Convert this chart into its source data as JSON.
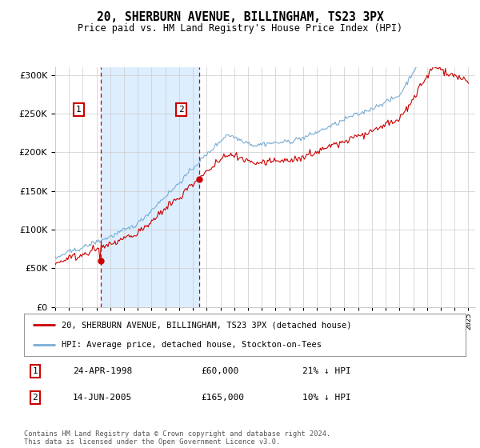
{
  "title1": "20, SHERBURN AVENUE, BILLINGHAM, TS23 3PX",
  "title2": "Price paid vs. HM Land Registry's House Price Index (HPI)",
  "ytick_values": [
    0,
    50000,
    100000,
    150000,
    200000,
    250000,
    300000
  ],
  "ylim": [
    0,
    310000
  ],
  "xlim_start": 1995.0,
  "xlim_end": 2025.5,
  "sale1_x": 1998.31,
  "sale1_y": 60000,
  "sale2_x": 2005.45,
  "sale2_y": 165000,
  "legend_line1": "20, SHERBURN AVENUE, BILLINGHAM, TS23 3PX (detached house)",
  "legend_line2": "HPI: Average price, detached house, Stockton-on-Tees",
  "table_row1_num": "1",
  "table_row1_date": "24-APR-1998",
  "table_row1_price": "£60,000",
  "table_row1_hpi": "21% ↓ HPI",
  "table_row2_num": "2",
  "table_row2_date": "14-JUN-2005",
  "table_row2_price": "£165,000",
  "table_row2_hpi": "10% ↓ HPI",
  "footer": "Contains HM Land Registry data © Crown copyright and database right 2024.\nThis data is licensed under the Open Government Licence v3.0.",
  "hpi_color": "#7aadd4",
  "price_color": "#cc0000",
  "vline_color": "#cc0000",
  "shade_color": "#ddeeff",
  "grid_color": "#cccccc",
  "bg_color": "#ffffff"
}
